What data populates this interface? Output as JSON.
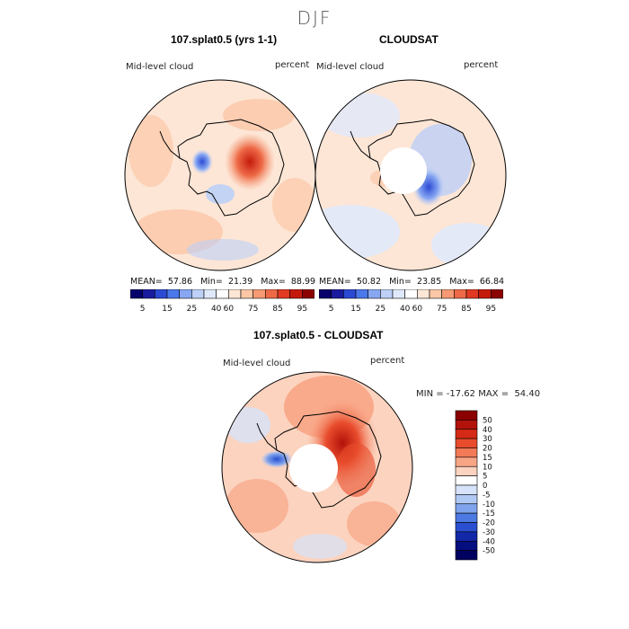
{
  "season": "DJF",
  "panels": {
    "left": {
      "title": "107.splat0.5 (yrs 1-1)",
      "field": "Mid-level cloud",
      "units": "percent",
      "mean_label": "MEAN=",
      "mean": "57.86",
      "min_label": "Min=",
      "min": "21.39",
      "max_label": "Max=",
      "max": "88.99"
    },
    "right": {
      "title": "CLOUDSAT",
      "field": "Mid-level cloud",
      "units": "percent",
      "mean_label": "MEAN=",
      "mean": "50.82",
      "min_label": "Min=",
      "min": "23.85",
      "max_label": "Max=",
      "max": "66.84"
    },
    "diff": {
      "title": "107.splat0.5 - CLOUDSAT",
      "field": "Mid-level cloud",
      "units": "percent",
      "minmax": "MIN = -17.62 MAX =  54.40"
    }
  },
  "colorbar_abs": {
    "labels": [
      "5",
      "15",
      "25",
      "40",
      "60",
      "75",
      "85",
      "95"
    ],
    "colors": [
      "#08006b",
      "#1a1a9e",
      "#2c49d4",
      "#4b78ea",
      "#87a7f2",
      "#bdd0f7",
      "#e0e9fb",
      "#ffffff",
      "#fde6d6",
      "#fbc7a7",
      "#f59a74",
      "#ee6a47",
      "#e23a22",
      "#c41a0c",
      "#8b0000"
    ]
  },
  "colorbar_diff": {
    "labels": [
      "50",
      "40",
      "30",
      "20",
      "15",
      "10",
      "5",
      "0",
      "-5",
      "-10",
      "-15",
      "-20",
      "-30",
      "-40",
      "-50"
    ],
    "colors": [
      "#8b0000",
      "#b3120a",
      "#d42a16",
      "#e84c2c",
      "#f27a56",
      "#f8a585",
      "#fcd3bf",
      "#ffffff",
      "#d6e3fa",
      "#afc8f4",
      "#7fa3ec",
      "#4d79e2",
      "#2a4fd0",
      "#1228a8",
      "#050e80",
      "#000060"
    ]
  }
}
